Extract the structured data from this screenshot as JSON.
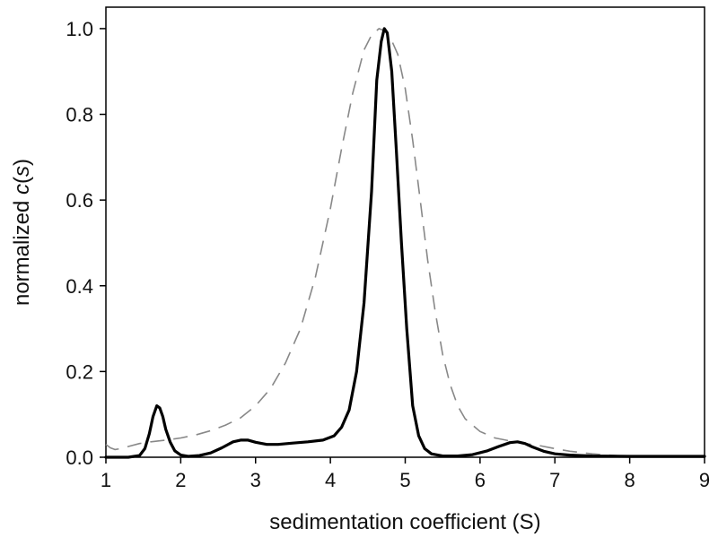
{
  "chart_data": {
    "type": "line",
    "title": "",
    "xlabel": "sedimentation coefficient (S)",
    "ylabel": {
      "prefix": "normalized ",
      "italic": "c",
      "open": "(",
      "var": "s",
      "close": ")"
    },
    "xlim": [
      1,
      9
    ],
    "ylim": [
      0,
      1.05
    ],
    "x_ticks": [
      "1",
      "2",
      "3",
      "4",
      "5",
      "6",
      "7",
      "8",
      "9"
    ],
    "y_ticks": [
      "0.0",
      "0.2",
      "0.4",
      "0.6",
      "0.8",
      "1.0"
    ],
    "grid": false,
    "series": [
      {
        "style": "solid",
        "color": "#000000",
        "x": [
          1.0,
          1.3,
          1.45,
          1.52,
          1.58,
          1.63,
          1.68,
          1.72,
          1.76,
          1.8,
          1.86,
          1.92,
          2.0,
          2.1,
          2.25,
          2.4,
          2.55,
          2.7,
          2.8,
          2.9,
          3.0,
          3.15,
          3.3,
          3.5,
          3.7,
          3.9,
          4.05,
          4.15,
          4.25,
          4.35,
          4.45,
          4.55,
          4.62,
          4.68,
          4.72,
          4.76,
          4.82,
          4.88,
          4.95,
          5.02,
          5.1,
          5.18,
          5.26,
          5.35,
          5.5,
          5.7,
          5.9,
          6.1,
          6.25,
          6.4,
          6.5,
          6.6,
          6.7,
          6.85,
          7.0,
          7.2,
          7.5,
          8.0,
          8.5,
          9.0
        ],
        "y": [
          0.0,
          0.0,
          0.004,
          0.02,
          0.055,
          0.095,
          0.12,
          0.115,
          0.095,
          0.065,
          0.035,
          0.015,
          0.005,
          0.002,
          0.004,
          0.01,
          0.022,
          0.036,
          0.04,
          0.04,
          0.035,
          0.03,
          0.03,
          0.033,
          0.036,
          0.04,
          0.05,
          0.07,
          0.11,
          0.2,
          0.36,
          0.62,
          0.88,
          0.97,
          1.0,
          0.99,
          0.9,
          0.72,
          0.5,
          0.3,
          0.12,
          0.05,
          0.02,
          0.008,
          0.003,
          0.003,
          0.006,
          0.015,
          0.025,
          0.034,
          0.036,
          0.032,
          0.024,
          0.014,
          0.008,
          0.005,
          0.003,
          0.002,
          0.002,
          0.002
        ]
      },
      {
        "style": "dashed",
        "color": "#888888",
        "x": [
          1.0,
          1.06,
          1.12,
          1.2,
          1.3,
          1.45,
          1.6,
          1.8,
          2.0,
          2.2,
          2.4,
          2.6,
          2.8,
          3.0,
          3.2,
          3.4,
          3.6,
          3.8,
          4.0,
          4.15,
          4.3,
          4.45,
          4.55,
          4.65,
          4.72,
          4.8,
          4.9,
          5.0,
          5.1,
          5.2,
          5.3,
          5.4,
          5.5,
          5.6,
          5.7,
          5.8,
          6.0,
          6.2,
          6.4,
          6.6,
          6.8,
          7.0,
          7.2,
          7.5,
          7.8,
          8.0,
          8.5,
          9.0
        ],
        "y": [
          0.03,
          0.022,
          0.018,
          0.02,
          0.025,
          0.032,
          0.036,
          0.04,
          0.045,
          0.052,
          0.062,
          0.075,
          0.092,
          0.12,
          0.16,
          0.22,
          0.3,
          0.42,
          0.58,
          0.72,
          0.85,
          0.95,
          0.985,
          1.0,
          0.995,
          0.98,
          0.94,
          0.86,
          0.74,
          0.6,
          0.46,
          0.34,
          0.24,
          0.17,
          0.12,
          0.09,
          0.06,
          0.045,
          0.038,
          0.032,
          0.027,
          0.02,
          0.014,
          0.008,
          0.004,
          0.002,
          0.001,
          0.001
        ]
      }
    ]
  }
}
